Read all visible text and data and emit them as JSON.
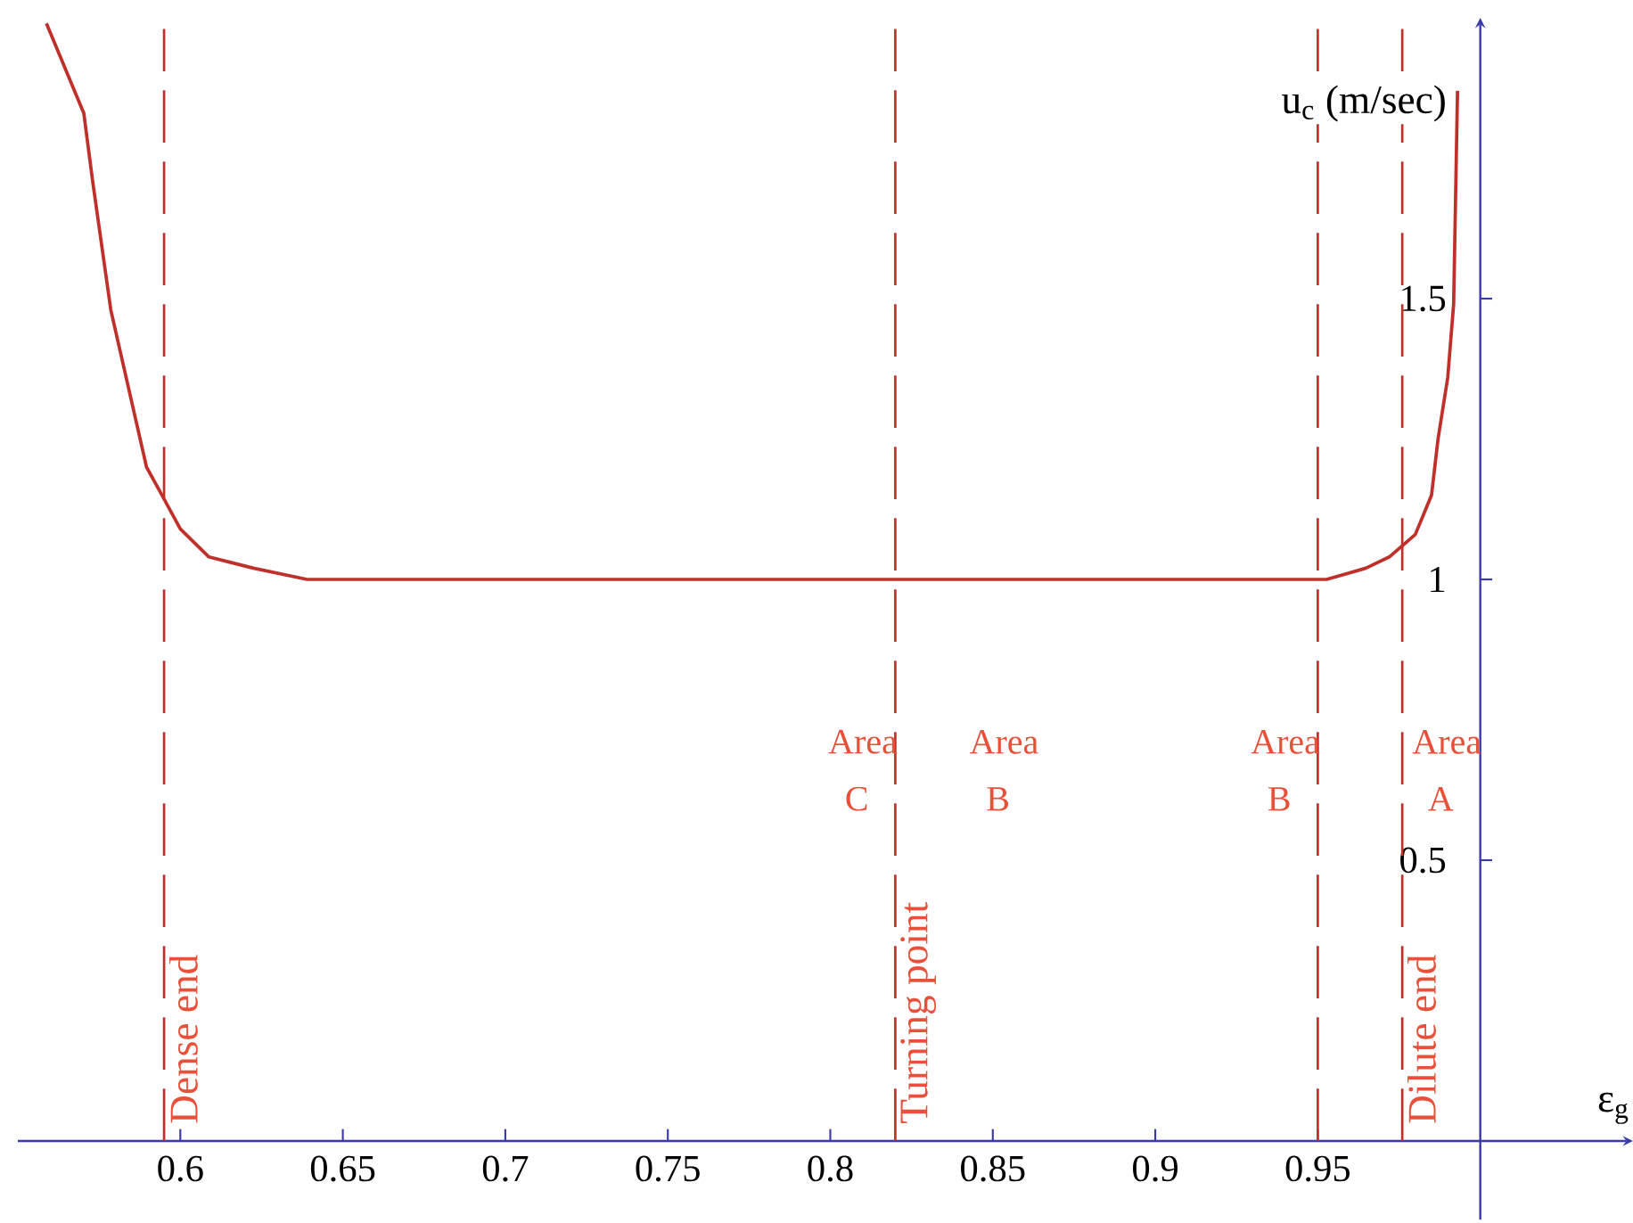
{
  "chart_data": {
    "type": "line",
    "xlabel": "ε$_{g}$",
    "ylabel": "u$_{c}$ (m/sec)",
    "xlim": [
      0.55,
      1.047
    ],
    "ylim": [
      0,
      2.0
    ],
    "xticks": [
      0.6,
      0.65,
      0.7,
      0.75,
      0.8,
      0.85,
      0.9,
      0.95
    ],
    "yticks": [
      0.5,
      1,
      1.5
    ],
    "series": [
      {
        "color": "#c0302a",
        "x": [
          0.5588,
          0.5703,
          0.573,
          0.5786,
          0.5896,
          0.5934,
          0.6,
          0.6088,
          0.6225,
          0.639,
          0.95,
          0.9527,
          0.9648,
          0.972,
          0.98,
          0.985,
          0.987,
          0.99,
          0.9918,
          0.993
        ],
        "values": [
          1.99,
          1.83,
          1.71,
          1.48,
          1.2,
          1.16,
          1.09,
          1.04,
          1.02,
          1.0,
          1.0,
          1.0,
          1.02,
          1.04,
          1.08,
          1.15,
          1.25,
          1.36,
          1.49,
          1.87
        ]
      }
    ],
    "ref_lines": [
      {
        "axis": "x",
        "value": 0.595,
        "label": "Dense end",
        "color": "#c0302a",
        "line_style": "dashed"
      },
      {
        "axis": "x",
        "value": 0.82,
        "label": "Turning point",
        "color": "#c0302a",
        "line_style": "dashed"
      },
      {
        "axis": "x",
        "value": 0.95,
        "color": "#c0302a",
        "line_style": "dashed"
      },
      {
        "axis": "x",
        "value": 0.976,
        "label": "Dilute end",
        "color": "#c0302a",
        "line_style": "dashed"
      }
    ],
    "annotations": [
      "Area C",
      "Area B",
      "Area B",
      "Area A"
    ]
  }
}
